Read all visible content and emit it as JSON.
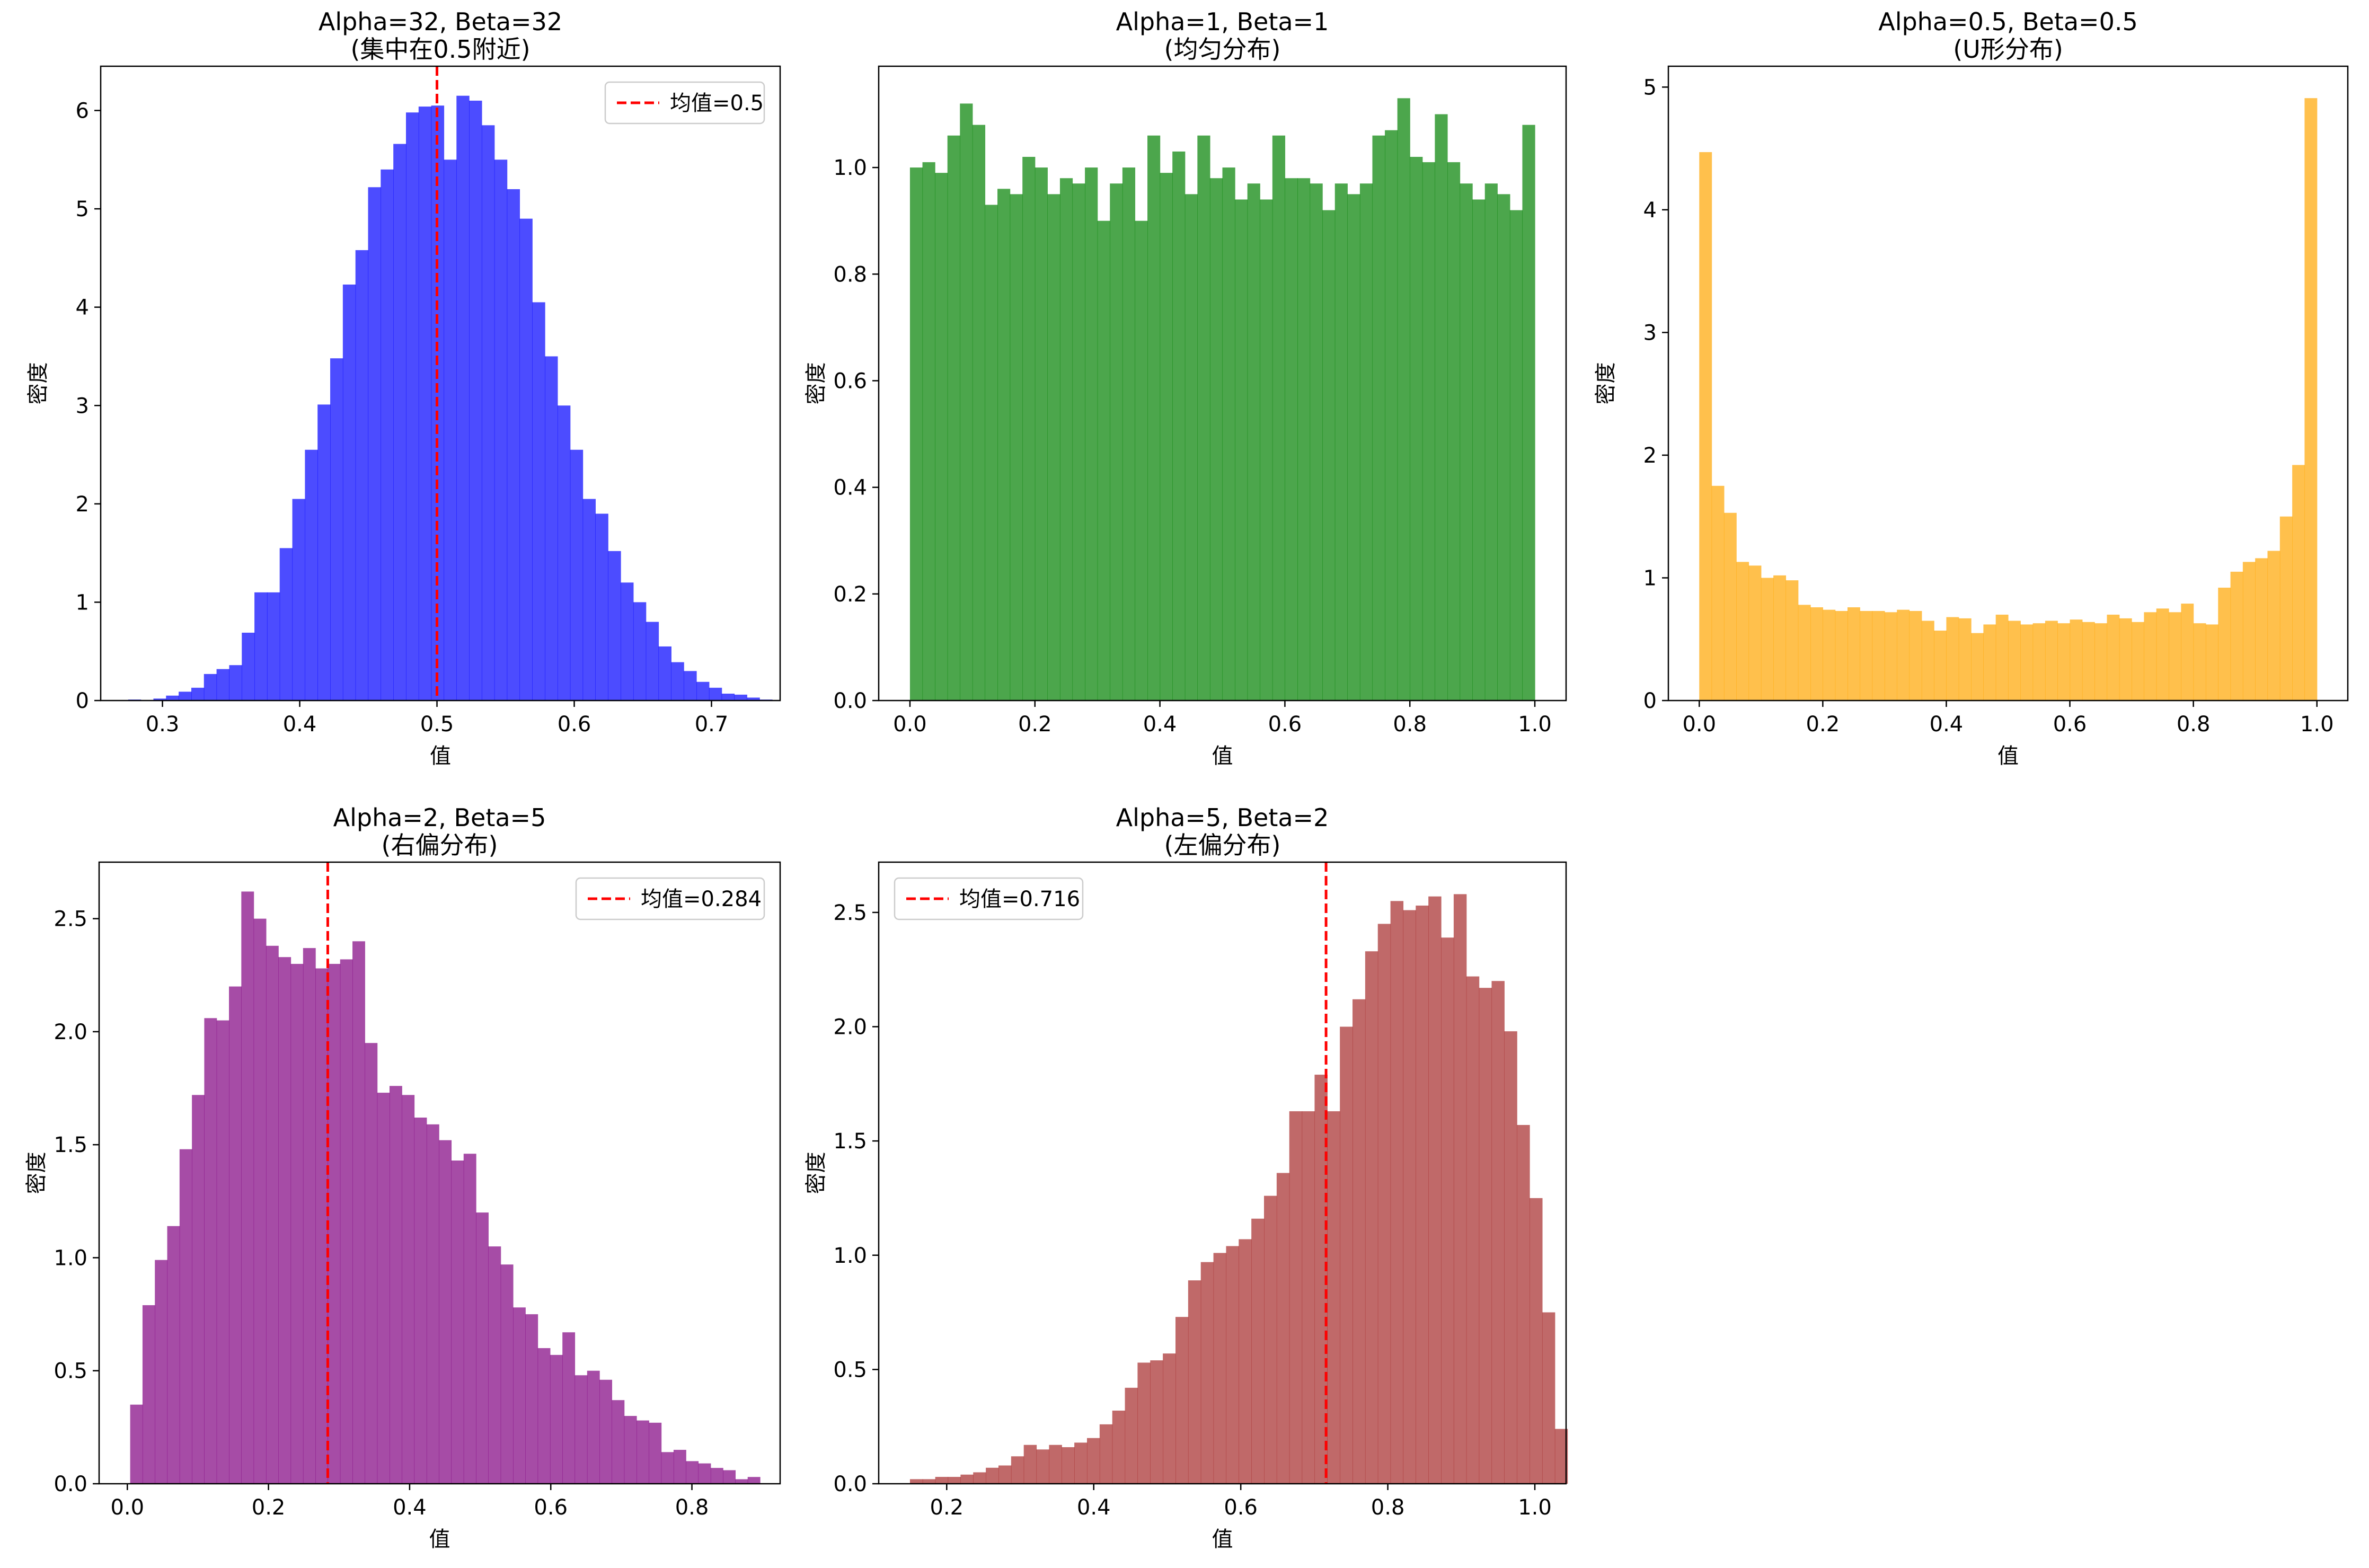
{
  "chart_data": [
    {
      "type": "histogram",
      "title": "Alpha=32, Beta=32",
      "subtitle": "(集中在0.5附近)",
      "xlabel": "值",
      "ylabel": "密度",
      "xlim": [
        0.255,
        0.75
      ],
      "ylim": [
        0,
        6.45
      ],
      "xticks": [
        {
          "v": 0.3,
          "label": "0.3"
        },
        {
          "v": 0.4,
          "label": "0.4"
        },
        {
          "v": 0.5,
          "label": "0.5"
        },
        {
          "v": 0.6,
          "label": "0.6"
        },
        {
          "v": 0.7,
          "label": "0.7"
        }
      ],
      "yticks": [
        {
          "v": 0,
          "label": "0"
        },
        {
          "v": 1,
          "label": "1"
        },
        {
          "v": 2,
          "label": "2"
        },
        {
          "v": 3,
          "label": "3"
        },
        {
          "v": 4,
          "label": "4"
        },
        {
          "v": 5,
          "label": "5"
        },
        {
          "v": 6,
          "label": "6"
        }
      ],
      "color": "#0000ff",
      "bin_start": 0.275,
      "bin_width": 0.0092,
      "values": [
        0.01,
        0.0,
        0.02,
        0.05,
        0.09,
        0.13,
        0.27,
        0.32,
        0.36,
        0.69,
        1.1,
        1.1,
        1.55,
        2.05,
        2.55,
        3.01,
        3.48,
        4.23,
        4.58,
        5.22,
        5.4,
        5.66,
        5.98,
        6.04,
        6.05,
        5.5,
        6.15,
        6.1,
        5.85,
        5.5,
        5.2,
        4.9,
        4.05,
        3.5,
        3.0,
        2.55,
        2.05,
        1.9,
        1.52,
        1.2,
        1.0,
        0.8,
        0.55,
        0.39,
        0.3,
        0.19,
        0.13,
        0.07,
        0.06,
        0.03,
        0.01
      ],
      "mean_line": {
        "x": 0.5,
        "label": "均值=0.5",
        "color": "#ff0000"
      },
      "legend_loc": "upper right"
    },
    {
      "type": "histogram",
      "title": "Alpha=1, Beta=1",
      "subtitle": "(均匀分布)",
      "xlabel": "值",
      "ylabel": "密度",
      "xlim": [
        -0.05,
        1.05
      ],
      "ylim": [
        0,
        1.19
      ],
      "xticks": [
        {
          "v": 0.0,
          "label": "0.0"
        },
        {
          "v": 0.2,
          "label": "0.2"
        },
        {
          "v": 0.4,
          "label": "0.4"
        },
        {
          "v": 0.6,
          "label": "0.6"
        },
        {
          "v": 0.8,
          "label": "0.8"
        },
        {
          "v": 1.0,
          "label": "1.0"
        }
      ],
      "yticks": [
        {
          "v": 0.0,
          "label": "0.0"
        },
        {
          "v": 0.2,
          "label": "0.2"
        },
        {
          "v": 0.4,
          "label": "0.4"
        },
        {
          "v": 0.6,
          "label": "0.6"
        },
        {
          "v": 0.8,
          "label": "0.8"
        },
        {
          "v": 1.0,
          "label": "1.0"
        }
      ],
      "color": "#008000",
      "bin_start": 0.0,
      "bin_width": 0.02,
      "values": [
        1.0,
        1.01,
        0.99,
        1.06,
        1.12,
        1.08,
        0.93,
        0.96,
        0.95,
        1.02,
        1.0,
        0.95,
        0.98,
        0.97,
        1.0,
        0.9,
        0.97,
        1.0,
        0.9,
        1.06,
        0.99,
        1.03,
        0.95,
        1.06,
        0.98,
        1.0,
        0.94,
        0.97,
        0.94,
        1.06,
        0.98,
        0.98,
        0.97,
        0.92,
        0.97,
        0.95,
        0.97,
        1.06,
        1.07,
        1.13,
        1.02,
        1.01,
        1.1,
        1.01,
        0.97,
        0.94,
        0.97,
        0.95,
        0.92,
        1.08
      ],
      "legend_loc": "none"
    },
    {
      "type": "histogram",
      "title": "Alpha=0.5, Beta=0.5",
      "subtitle": "(U形分布)",
      "xlabel": "值",
      "ylabel": "密度",
      "xlim": [
        -0.05,
        1.05
      ],
      "ylim": [
        0,
        5.17
      ],
      "xticks": [
        {
          "v": 0.0,
          "label": "0.0"
        },
        {
          "v": 0.2,
          "label": "0.2"
        },
        {
          "v": 0.4,
          "label": "0.4"
        },
        {
          "v": 0.6,
          "label": "0.6"
        },
        {
          "v": 0.8,
          "label": "0.8"
        },
        {
          "v": 1.0,
          "label": "1.0"
        }
      ],
      "yticks": [
        {
          "v": 0,
          "label": "0"
        },
        {
          "v": 1,
          "label": "1"
        },
        {
          "v": 2,
          "label": "2"
        },
        {
          "v": 3,
          "label": "3"
        },
        {
          "v": 4,
          "label": "4"
        },
        {
          "v": 5,
          "label": "5"
        }
      ],
      "color": "#ffa500",
      "bin_start": 0.0,
      "bin_width": 0.02,
      "values": [
        4.47,
        1.75,
        1.53,
        1.13,
        1.1,
        1.0,
        1.02,
        0.98,
        0.78,
        0.76,
        0.74,
        0.73,
        0.76,
        0.73,
        0.73,
        0.72,
        0.74,
        0.73,
        0.65,
        0.57,
        0.68,
        0.67,
        0.55,
        0.62,
        0.7,
        0.65,
        0.62,
        0.63,
        0.65,
        0.63,
        0.66,
        0.64,
        0.63,
        0.7,
        0.67,
        0.64,
        0.72,
        0.75,
        0.72,
        0.79,
        0.63,
        0.62,
        0.92,
        1.05,
        1.13,
        1.16,
        1.22,
        1.5,
        1.92,
        4.91
      ],
      "legend_loc": "none"
    },
    {
      "type": "histogram",
      "title": "Alpha=2, Beta=5",
      "subtitle": "(右偏分布)",
      "xlabel": "值",
      "ylabel": "密度",
      "xlim": [
        -0.04,
        0.925
      ],
      "ylim": [
        0,
        2.75
      ],
      "xticks": [
        {
          "v": 0.0,
          "label": "0.0"
        },
        {
          "v": 0.2,
          "label": "0.2"
        },
        {
          "v": 0.4,
          "label": "0.4"
        },
        {
          "v": 0.6,
          "label": "0.6"
        },
        {
          "v": 0.8,
          "label": "0.8"
        }
      ],
      "yticks": [
        {
          "v": 0.0,
          "label": "0.0"
        },
        {
          "v": 0.5,
          "label": "0.5"
        },
        {
          "v": 1.0,
          "label": "1.0"
        },
        {
          "v": 1.5,
          "label": "1.5"
        },
        {
          "v": 2.0,
          "label": "2.0"
        },
        {
          "v": 2.5,
          "label": "2.5"
        }
      ],
      "color": "#800080",
      "bin_start": 0.004,
      "bin_width": 0.0175,
      "values": [
        0.35,
        0.79,
        0.99,
        1.14,
        1.48,
        1.72,
        2.06,
        2.05,
        2.2,
        2.62,
        2.5,
        2.38,
        2.33,
        2.3,
        2.37,
        2.28,
        2.3,
        2.32,
        2.4,
        1.95,
        1.73,
        1.76,
        1.72,
        1.62,
        1.59,
        1.52,
        1.43,
        1.46,
        1.2,
        1.05,
        0.97,
        0.78,
        0.75,
        0.6,
        0.57,
        0.67,
        0.48,
        0.5,
        0.46,
        0.37,
        0.3,
        0.28,
        0.27,
        0.14,
        0.15,
        0.1,
        0.09,
        0.07,
        0.06,
        0.02,
        0.03
      ],
      "mean_line": {
        "x": 0.284,
        "label": "均值=0.284",
        "color": "#ff0000"
      },
      "legend_loc": "upper right"
    },
    {
      "type": "histogram",
      "title": "Alpha=5, Beta=2",
      "subtitle": "(左偏分布)",
      "xlabel": "值",
      "ylabel": "密度",
      "xlim": [
        0.1075,
        1.0425
      ],
      "ylim": [
        0,
        2.72
      ],
      "xticks": [
        {
          "v": 0.2,
          "label": "0.2"
        },
        {
          "v": 0.4,
          "label": "0.4"
        },
        {
          "v": 0.6,
          "label": "0.6"
        },
        {
          "v": 0.8,
          "label": "0.8"
        },
        {
          "v": 1.0,
          "label": "1.0"
        }
      ],
      "yticks": [
        {
          "v": 0.0,
          "label": "0.0"
        },
        {
          "v": 0.5,
          "label": "0.5"
        },
        {
          "v": 1.0,
          "label": "1.0"
        },
        {
          "v": 1.5,
          "label": "1.5"
        },
        {
          "v": 2.0,
          "label": "2.0"
        },
        {
          "v": 2.5,
          "label": "2.5"
        }
      ],
      "color": "#a52a2a",
      "bin_start": 0.15,
      "bin_width": 0.0172,
      "values": [
        0.02,
        0.02,
        0.03,
        0.03,
        0.04,
        0.05,
        0.07,
        0.08,
        0.12,
        0.17,
        0.15,
        0.17,
        0.16,
        0.18,
        0.2,
        0.26,
        0.32,
        0.42,
        0.53,
        0.54,
        0.57,
        0.73,
        0.89,
        0.97,
        1.01,
        1.04,
        1.07,
        1.16,
        1.26,
        1.36,
        1.63,
        1.63,
        1.79,
        1.63,
        2.0,
        2.12,
        2.33,
        2.45,
        2.55,
        2.51,
        2.53,
        2.57,
        2.39,
        2.58,
        2.22,
        2.17,
        2.2,
        1.98,
        1.57,
        1.25,
        0.75,
        0.24
      ],
      "mean_line": {
        "x": 0.716,
        "label": "均值=0.716",
        "color": "#ff0000"
      },
      "legend_loc": "upper left"
    }
  ]
}
